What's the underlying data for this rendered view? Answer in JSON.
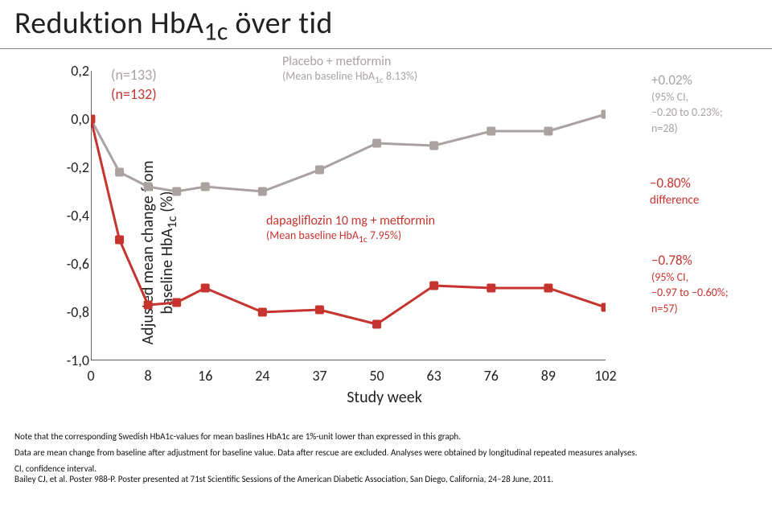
{
  "title": {
    "prefix": "Reduktion HbA",
    "sub": "1c",
    "suffix": " över tid"
  },
  "chart": {
    "type": "line",
    "ylabel": {
      "prefix": "Adjusted mean change from\nbaseline HbA",
      "sub": "1c",
      "suffix": " (%)"
    },
    "xlabel": "Study week",
    "x_ticks_labels": [
      "0",
      "8",
      "16",
      "24",
      "37",
      "50",
      "63",
      "76",
      "89",
      "102"
    ],
    "x_ticks_values": [
      0,
      8,
      16,
      24,
      37,
      50,
      63,
      76,
      89,
      102
    ],
    "y_ticks_labels": [
      "0,2",
      "0,0",
      "-0,2",
      "-0,4",
      "-0,6",
      "-0,8",
      "-1,0"
    ],
    "y_ticks_values": [
      0.2,
      0.0,
      -0.2,
      -0.4,
      -0.6,
      -0.8,
      -1.0
    ],
    "xlim": [
      0,
      102
    ],
    "ylim": [
      -1.0,
      0.2
    ],
    "colors": {
      "placebo_line": "#a9a2a0",
      "placebo_marker": "#a9a2a0",
      "dapa_line": "#c73430",
      "dapa_marker": "#c73430",
      "axis": "#000000",
      "background": "#ffffff"
    },
    "marker_size": 11,
    "line_width": 3,
    "series": {
      "placebo": {
        "x": [
          0,
          4,
          8,
          12,
          16,
          24,
          37,
          50,
          63,
          76,
          89,
          102
        ],
        "y": [
          0.0,
          -0.22,
          -0.28,
          -0.3,
          -0.28,
          -0.3,
          -0.21,
          -0.1,
          -0.11,
          -0.05,
          -0.05,
          0.02
        ],
        "n_label": {
          "text": "(n=133)",
          "color": "#a9a2a0"
        },
        "label": {
          "prefix": "Placebo + metformin",
          "detail_prefix": "(Mean baseline HbA",
          "detail_sub": "1c",
          "detail_suffix": " 8.13%)"
        }
      },
      "dapa": {
        "x": [
          0,
          4,
          8,
          12,
          16,
          24,
          37,
          50,
          63,
          76,
          89,
          102
        ],
        "y": [
          0.0,
          -0.5,
          -0.77,
          -0.76,
          -0.7,
          -0.8,
          -0.79,
          -0.85,
          -0.69,
          -0.7,
          -0.7,
          -0.78
        ],
        "n_label": {
          "text": "(n=132)",
          "color": "#c73430"
        },
        "label": {
          "prefix": "dapagliflozin 10 mg + metformin",
          "detail_prefix": "(Mean baseline HbA",
          "detail_sub": "1c",
          "detail_suffix": " 7.95%)"
        }
      }
    },
    "difference": {
      "value": "−0.80%",
      "label": "difference",
      "color": "#c73430"
    },
    "placebo_endpoint": {
      "value": "+0.02%",
      "ci": "(95% CI,\n−0.20 to 0.23%;\nn=28)",
      "color": "#a9a2a0"
    },
    "dapa_endpoint": {
      "value": "−0.78%",
      "ci": "(95% CI,\n−0.97 to −0.60%;\nn=57)",
      "color": "#c73430"
    }
  },
  "footnotes": {
    "note": "Note that the corresponding Swedish HbA1c-values for mean baslines HbA1c are 1%-unit lower than expressed in this graph.",
    "methods": "Data are mean change from baseline after adjustment for baseline value. Data after rescue are excluded. Analyses were obtained by longitudinal repeated measures analyses.",
    "ci": "CI, confidence interval.",
    "ref": "Bailey CJ, et al. Poster 988-P. Poster presented at 71st Scientific Sessions of the American Diabetic Association, San Diego, California, 24–28 June, 2011."
  }
}
